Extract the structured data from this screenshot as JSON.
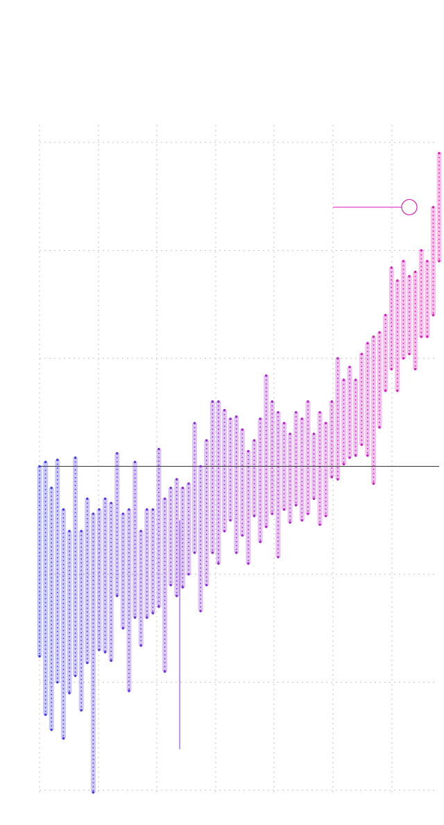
{
  "chart_data": {
    "type": "scatter",
    "title": "",
    "xlabel": "",
    "ylabel": "",
    "x_range": [
      1880,
      2014
    ],
    "ylim": [
      -1.5,
      1.5
    ],
    "grid": true,
    "zero_line": true,
    "colors": {
      "start": "#3b3bf0",
      "mid": "#a02ad8",
      "end": "#e81cb4",
      "baseline": "#333333",
      "grid": "#cccccc"
    },
    "series": [
      {
        "values": [
          {
            "x": 1880,
            "min": -0.88,
            "max": 0.0
          },
          {
            "x": 1882,
            "min": -1.15,
            "max": 0.02
          },
          {
            "x": 1884,
            "min": -1.22,
            "max": -0.1
          },
          {
            "x": 1886,
            "min": -1.0,
            "max": 0.03
          },
          {
            "x": 1888,
            "min": -1.26,
            "max": -0.2
          },
          {
            "x": 1890,
            "min": -1.05,
            "max": -0.3
          },
          {
            "x": 1892,
            "min": -0.97,
            "max": 0.04
          },
          {
            "x": 1894,
            "min": -1.13,
            "max": -0.3
          },
          {
            "x": 1896,
            "min": -0.91,
            "max": -0.15
          },
          {
            "x": 1898,
            "min": -1.51,
            "max": -0.22
          },
          {
            "x": 1900,
            "min": -0.85,
            "max": -0.2
          },
          {
            "x": 1902,
            "min": -0.86,
            "max": -0.15
          },
          {
            "x": 1904,
            "min": -0.9,
            "max": -0.17
          },
          {
            "x": 1906,
            "min": -0.6,
            "max": 0.06
          },
          {
            "x": 1908,
            "min": -0.75,
            "max": -0.22
          },
          {
            "x": 1910,
            "min": -1.04,
            "max": -0.2
          },
          {
            "x": 1912,
            "min": -0.7,
            "max": 0.02
          },
          {
            "x": 1914,
            "min": -0.83,
            "max": -0.3
          },
          {
            "x": 1916,
            "min": -0.7,
            "max": -0.2
          },
          {
            "x": 1918,
            "min": -0.68,
            "max": -0.2
          },
          {
            "x": 1920,
            "min": -0.65,
            "max": 0.08
          },
          {
            "x": 1922,
            "min": -0.95,
            "max": -0.15
          },
          {
            "x": 1924,
            "min": -0.55,
            "max": -0.1
          },
          {
            "x": 1926,
            "min": -0.6,
            "max": -0.06
          },
          {
            "x": 1928,
            "min": -0.56,
            "max": -0.1
          },
          {
            "x": 1930,
            "min": -0.5,
            "max": -0.08
          },
          {
            "x": 1932,
            "min": -0.4,
            "max": 0.2
          },
          {
            "x": 1934,
            "min": -0.67,
            "max": 0.0
          },
          {
            "x": 1936,
            "min": -0.55,
            "max": 0.12
          },
          {
            "x": 1938,
            "min": -0.4,
            "max": 0.3
          },
          {
            "x": 1940,
            "min": -0.45,
            "max": 0.3
          },
          {
            "x": 1942,
            "min": -0.3,
            "max": 0.26
          },
          {
            "x": 1944,
            "min": -0.25,
            "max": 0.22
          },
          {
            "x": 1946,
            "min": -0.4,
            "max": 0.23
          },
          {
            "x": 1948,
            "min": -0.32,
            "max": 0.17
          },
          {
            "x": 1950,
            "min": -0.45,
            "max": 0.07
          },
          {
            "x": 1952,
            "min": -0.23,
            "max": 0.12
          },
          {
            "x": 1954,
            "min": -0.35,
            "max": 0.22
          },
          {
            "x": 1956,
            "min": -0.28,
            "max": 0.42
          },
          {
            "x": 1958,
            "min": -0.22,
            "max": 0.3
          },
          {
            "x": 1960,
            "min": -0.42,
            "max": 0.25
          },
          {
            "x": 1962,
            "min": -0.2,
            "max": 0.2
          },
          {
            "x": 1964,
            "min": -0.26,
            "max": 0.15
          },
          {
            "x": 1966,
            "min": -0.18,
            "max": 0.25
          },
          {
            "x": 1968,
            "min": -0.25,
            "max": 0.22
          },
          {
            "x": 1970,
            "min": -0.22,
            "max": 0.3
          },
          {
            "x": 1972,
            "min": -0.15,
            "max": 0.15
          },
          {
            "x": 1974,
            "min": -0.27,
            "max": 0.25
          },
          {
            "x": 1976,
            "min": -0.23,
            "max": 0.2
          },
          {
            "x": 1978,
            "min": -0.05,
            "max": 0.3
          },
          {
            "x": 1980,
            "min": -0.06,
            "max": 0.5
          },
          {
            "x": 1982,
            "min": 0.01,
            "max": 0.4
          },
          {
            "x": 1984,
            "min": 0.04,
            "max": 0.46
          },
          {
            "x": 1986,
            "min": 0.05,
            "max": 0.4
          },
          {
            "x": 1988,
            "min": 0.1,
            "max": 0.52
          },
          {
            "x": 1990,
            "min": 0.05,
            "max": 0.57
          },
          {
            "x": 1992,
            "min": -0.08,
            "max": 0.6
          },
          {
            "x": 1994,
            "min": 0.18,
            "max": 0.62
          },
          {
            "x": 1996,
            "min": 0.35,
            "max": 0.7
          },
          {
            "x": 1998,
            "min": 0.45,
            "max": 0.92
          },
          {
            "x": 2000,
            "min": 0.35,
            "max": 0.86
          },
          {
            "x": 2002,
            "min": 0.5,
            "max": 0.95
          },
          {
            "x": 2004,
            "min": 0.52,
            "max": 0.88
          },
          {
            "x": 2006,
            "min": 0.45,
            "max": 0.9
          },
          {
            "x": 2008,
            "min": 0.6,
            "max": 1.0
          },
          {
            "x": 2010,
            "min": 0.6,
            "max": 0.95
          },
          {
            "x": 2012,
            "min": 0.7,
            "max": 1.2
          },
          {
            "x": 2014,
            "min": 0.95,
            "max": 1.45
          }
        ]
      }
    ],
    "annotations": [
      {
        "type": "vertical-line",
        "x": 1927,
        "y_from": -0.25,
        "y_to": -1.31
      },
      {
        "type": "highlight",
        "x": 2004,
        "y": 1.2
      }
    ]
  }
}
